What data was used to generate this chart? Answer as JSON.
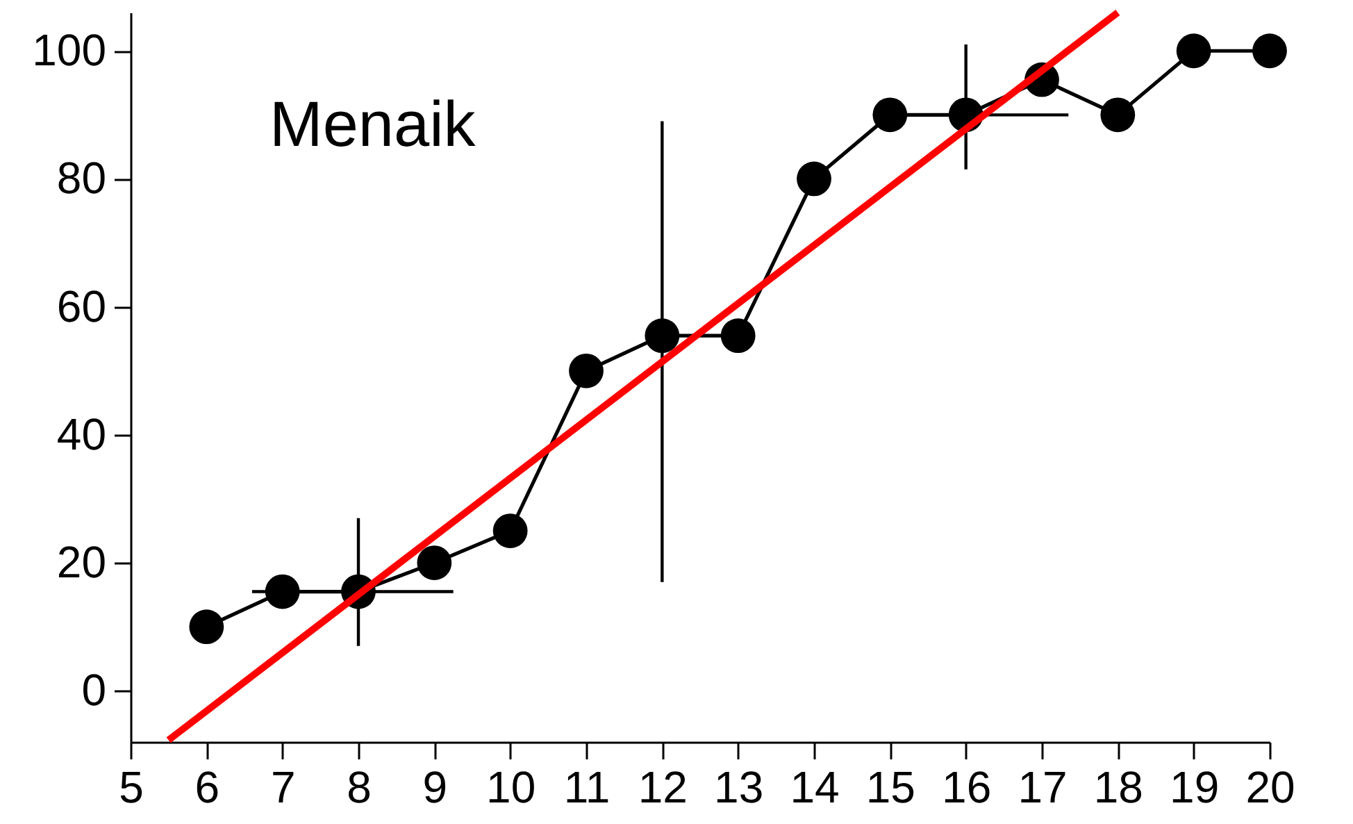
{
  "chart_data": {
    "type": "line",
    "x": [
      6,
      7,
      8,
      9,
      10,
      11,
      12,
      13,
      14,
      15,
      16,
      17,
      18,
      19,
      20
    ],
    "series": [
      {
        "color": "#000000",
        "values": [
          10,
          15.5,
          15.5,
          20,
          25,
          50,
          55.5,
          55.5,
          80,
          90,
          90,
          95.5,
          90,
          100,
          100
        ],
        "errors": [
          null,
          null,
          [
            7,
            27
          ],
          null,
          null,
          null,
          [
            17,
            89
          ],
          null,
          null,
          null,
          [
            81.5,
            101
          ],
          null,
          null,
          null,
          null
        ],
        "xerrors": [
          null,
          null,
          [
            6.6,
            9.25
          ],
          null,
          null,
          null,
          null,
          null,
          null,
          null,
          [
            15.3,
            17.35
          ],
          null,
          null,
          null,
          null
        ]
      },
      {
        "type": "line",
        "color": "#ff0000",
        "x": [
          5.5,
          18
        ],
        "values": [
          -7.7,
          106
        ],
        "marker": "none"
      }
    ],
    "marker": "circle",
    "line_style": "solid",
    "xlim": [
      5,
      20
    ],
    "xticks": [
      5,
      6,
      7,
      8,
      9,
      10,
      11,
      12,
      13,
      14,
      15,
      16,
      17,
      18,
      19,
      20
    ],
    "ylim": [
      -8,
      106
    ],
    "yticks": [
      0,
      20,
      40,
      60,
      80,
      100
    ],
    "annotations": [
      "Menaik"
    ]
  }
}
